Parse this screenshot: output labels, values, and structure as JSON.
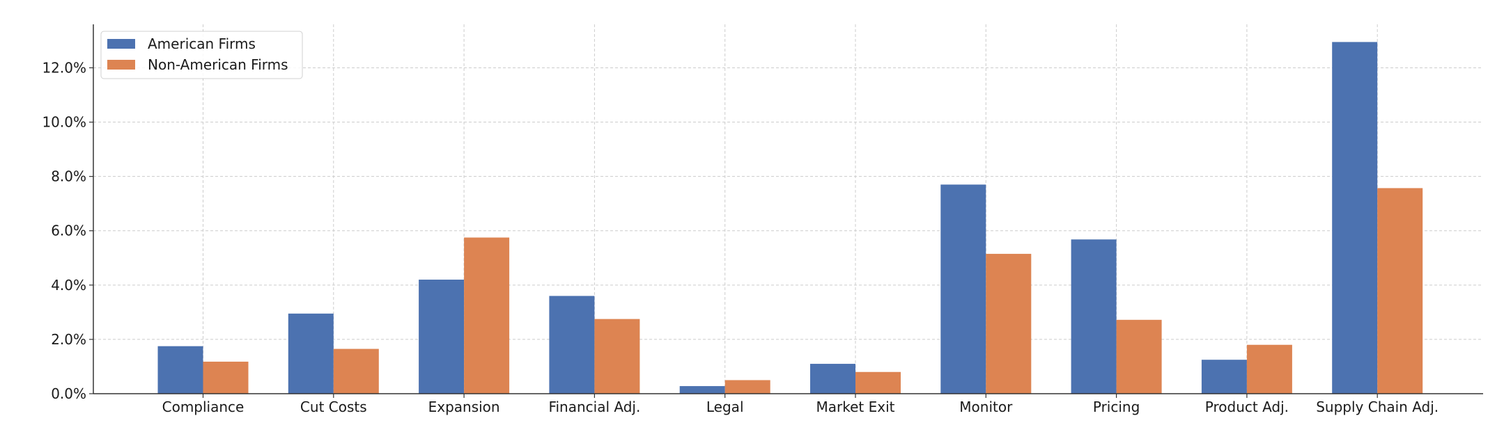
{
  "chart_data": {
    "type": "bar",
    "title": "",
    "xlabel": "",
    "ylabel": "",
    "categories": [
      "Compliance",
      "Cut Costs",
      "Expansion",
      "Financial Adj.",
      "Legal",
      "Market Exit",
      "Monitor",
      "Pricing",
      "Product Adj.",
      "Supply Chain Adj."
    ],
    "series": [
      {
        "name": "American Firms",
        "color": "#4c72b0",
        "values": [
          1.75,
          2.95,
          4.2,
          3.6,
          0.28,
          1.1,
          7.7,
          5.68,
          1.25,
          12.95
        ]
      },
      {
        "name": "Non-American Firms",
        "color": "#dd8452",
        "values": [
          1.18,
          1.65,
          5.75,
          2.75,
          0.5,
          0.8,
          5.15,
          2.72,
          1.8,
          7.57
        ]
      }
    ],
    "ylim": [
      0,
      13.6
    ],
    "yticks": [
      0,
      2,
      4,
      6,
      8,
      10,
      12
    ],
    "ytick_labels": [
      "0.0%",
      "2.0%",
      "4.0%",
      "6.0%",
      "8.0%",
      "10.0%",
      "12.0%"
    ],
    "grid": true,
    "legend_position": "top-left"
  }
}
